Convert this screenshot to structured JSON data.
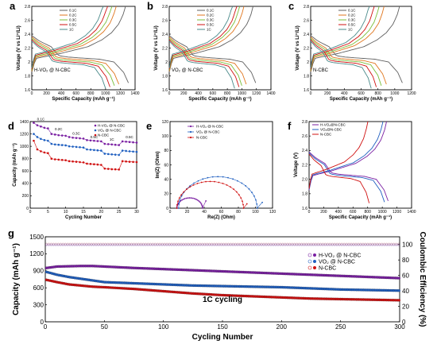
{
  "panels": {
    "a": {
      "letter": "a",
      "label": "H-VO₂ @ N-CBC",
      "label_color": "#7a1fa2"
    },
    "b": {
      "letter": "b",
      "label": "VO₂ @ N-CBC",
      "label_color": "#1f5fc0"
    },
    "c": {
      "letter": "c",
      "label": "N-CBC",
      "label_color": "#d01010"
    },
    "d": {
      "letter": "d",
      "rate_labels": [
        "0.1C",
        "0.2C",
        "0.3C",
        "0.5C",
        "1C",
        "0.5C"
      ]
    },
    "e": {
      "letter": "e"
    },
    "f": {
      "letter": "f"
    },
    "g": {
      "letter": "g",
      "annotation": "1C cycling"
    }
  },
  "colors": {
    "c01": "#606060",
    "c02": "#e0761e",
    "c03": "#7bbf3a",
    "c05": "#d01010",
    "c1": "#4a8a8a",
    "purple": "#7a1fa2",
    "blue": "#1f5fc0",
    "red": "#d01010"
  },
  "chart_data": [
    {
      "id": "a",
      "type": "line",
      "xlabel": "Specific Capacity (mAh g⁻¹)",
      "ylabel": "Voltage (V vs Li⁺/Li)",
      "xlim": [
        0,
        1400
      ],
      "ylim": [
        1.6,
        2.8
      ],
      "xticks": [
        0,
        200,
        400,
        600,
        800,
        1000,
        1200,
        1400
      ],
      "yticks": [
        1.6,
        1.8,
        2.0,
        2.2,
        2.4,
        2.6,
        2.8
      ],
      "legend": [
        "0.1C",
        "0.2C",
        "0.3C",
        "0.5C",
        "1C"
      ],
      "capacities": [
        1310,
        1180,
        1120,
        1060,
        1000
      ]
    },
    {
      "id": "b",
      "type": "line",
      "xlabel": "Specific Capacity (mAh g⁻¹)",
      "ylabel": "Voltage (V vs Li⁺/Li)",
      "xlim": [
        0,
        1400
      ],
      "ylim": [
        1.6,
        2.8
      ],
      "xticks": [
        0,
        200,
        400,
        600,
        800,
        1000,
        1200,
        1400
      ],
      "yticks": [
        1.6,
        1.8,
        2.0,
        2.2,
        2.4,
        2.6,
        2.8
      ],
      "legend": [
        "0.1C",
        "0.2C",
        "0.3C",
        "0.5C",
        "1C"
      ],
      "capacities": [
        1190,
        1060,
        1000,
        960,
        900
      ]
    },
    {
      "id": "c",
      "type": "line",
      "xlabel": "Specific Capacity (mAh g⁻¹)",
      "ylabel": "Voltage (V vs Li⁺/Li)",
      "xlim": [
        0,
        1200
      ],
      "ylim": [
        1.6,
        2.8
      ],
      "xticks": [
        0,
        200,
        400,
        600,
        800,
        1000,
        1200
      ],
      "yticks": [
        1.6,
        1.8,
        2.0,
        2.2,
        2.4,
        2.6,
        2.8
      ],
      "legend": [
        "0.1C",
        "0.2C",
        "0.3C",
        "0.5C",
        "1C"
      ],
      "capacities": [
        1090,
        900,
        840,
        780,
        720
      ]
    },
    {
      "id": "d",
      "type": "scatter",
      "xlabel": "Cycling Number",
      "ylabel": "Capacity (mAh g⁻¹)",
      "xlim": [
        0,
        30
      ],
      "ylim": [
        0,
        1400
      ],
      "xticks": [
        0,
        5,
        10,
        15,
        20,
        25,
        30
      ],
      "yticks": [
        0,
        200,
        400,
        600,
        800,
        1000,
        1200,
        1400
      ],
      "series": [
        {
          "name": "H-VO₂ @ N-CBC",
          "color": "#7a1fa2",
          "values": [
            1380,
            1340,
            1320,
            1300,
            1290,
            1200,
            1190,
            1180,
            1175,
            1170,
            1150,
            1140,
            1135,
            1130,
            1125,
            1100,
            1095,
            1090,
            1085,
            1080,
            1040,
            1035,
            1030,
            1025,
            1020,
            1080,
            1075,
            1070,
            1065,
            1060
          ]
        },
        {
          "name": "VO₂ @ N-CBC",
          "color": "#1f5fc0",
          "values": [
            1200,
            1150,
            1120,
            1100,
            1090,
            1040,
            1030,
            1025,
            1020,
            1015,
            1000,
            995,
            990,
            985,
            980,
            950,
            945,
            940,
            935,
            930,
            880,
            875,
            870,
            865,
            860,
            930,
            925,
            920,
            915,
            910
          ]
        },
        {
          "name": "N-CBC",
          "color": "#d01010",
          "values": [
            1090,
            950,
            920,
            900,
            890,
            800,
            790,
            785,
            780,
            775,
            760,
            755,
            750,
            745,
            740,
            720,
            715,
            710,
            705,
            700,
            640,
            635,
            630,
            628,
            625,
            760,
            755,
            750,
            748,
            745
          ]
        }
      ]
    },
    {
      "id": "e",
      "type": "scatter",
      "xlabel": "Re(Z) (Ohm)",
      "ylabel": "Im(Z) (Ohm)",
      "xlim": [
        0,
        120
      ],
      "ylim": [
        0,
        120
      ],
      "xticks": [
        0,
        20,
        40,
        60,
        80,
        100,
        120
      ],
      "yticks": [
        0,
        20,
        40,
        60,
        80,
        100,
        120
      ],
      "series": [
        {
          "name": "H-VO₂ @ N-CBC",
          "color": "#7a1fa2",
          "semicircle": [
            8,
            38
          ],
          "tail_end": [
            42,
            10
          ]
        },
        {
          "name": "VO₂ @ N-CBC",
          "color": "#1f5fc0",
          "semicircle": [
            10,
            102
          ],
          "tail_end": [
            108,
            8
          ]
        },
        {
          "name": "N-CBC",
          "color": "#d01010",
          "semicircle": [
            8,
            86
          ],
          "tail_end": [
            90,
            6
          ]
        }
      ]
    },
    {
      "id": "f",
      "type": "line",
      "xlabel": "Specific Capacity (mAh g⁻¹)",
      "ylabel": "Voltage (V)",
      "xlim": [
        0,
        1400
      ],
      "ylim": [
        1.6,
        2.8
      ],
      "xticks": [
        0,
        200,
        400,
        600,
        800,
        1000,
        1200,
        1400
      ],
      "yticks": [
        1.6,
        1.8,
        2.0,
        2.2,
        2.4,
        2.6,
        2.8
      ],
      "series": [
        {
          "name": "H-VO₂@N-CBC",
          "color": "#7a1fa2",
          "capacity": 1080
        },
        {
          "name": "VO₂@N-CBC",
          "color": "#1f5fc0",
          "capacity": 1030
        },
        {
          "name": "N-CBC",
          "color": "#d01010",
          "capacity": 820
        }
      ]
    },
    {
      "id": "g",
      "type": "scatter",
      "xlabel": "Cycling Number",
      "ylabel": "Capacity (mAh g⁻¹)",
      "y2label": "Coulombic Efficiency (%)",
      "xlim": [
        0,
        300
      ],
      "ylim": [
        0,
        1500
      ],
      "y2lim": [
        0,
        110
      ],
      "xticks": [
        0,
        50,
        100,
        150,
        200,
        250,
        300
      ],
      "yticks": [
        0,
        300,
        600,
        900,
        1200,
        1500
      ],
      "y2ticks": [
        0,
        20,
        40,
        60,
        80,
        100
      ],
      "series": [
        {
          "name": "H-VO₂ @ N-CBC",
          "color": "#7a1fa2",
          "x": [
            1,
            10,
            20,
            30,
            40,
            50,
            75,
            100,
            125,
            150,
            175,
            200,
            225,
            250,
            275,
            300
          ],
          "values": [
            950,
            975,
            980,
            985,
            985,
            975,
            950,
            930,
            910,
            890,
            870,
            850,
            830,
            810,
            790,
            770
          ]
        },
        {
          "name": "VO₂ @ N-CBC",
          "color": "#1f5fc0",
          "x": [
            1,
            10,
            20,
            30,
            40,
            50,
            75,
            100,
            125,
            150,
            175,
            200,
            225,
            250,
            275,
            300
          ],
          "values": [
            880,
            830,
            790,
            760,
            730,
            700,
            680,
            660,
            640,
            630,
            620,
            610,
            590,
            570,
            560,
            550
          ]
        },
        {
          "name": "N-CBC",
          "color": "#d01010",
          "x": [
            1,
            10,
            20,
            30,
            40,
            50,
            75,
            100,
            125,
            150,
            175,
            200,
            225,
            250,
            275,
            300
          ],
          "values": [
            740,
            700,
            660,
            640,
            620,
            610,
            580,
            540,
            500,
            470,
            450,
            430,
            410,
            400,
            390,
            380
          ]
        }
      ],
      "coulombic_efficiency": 100
    }
  ]
}
